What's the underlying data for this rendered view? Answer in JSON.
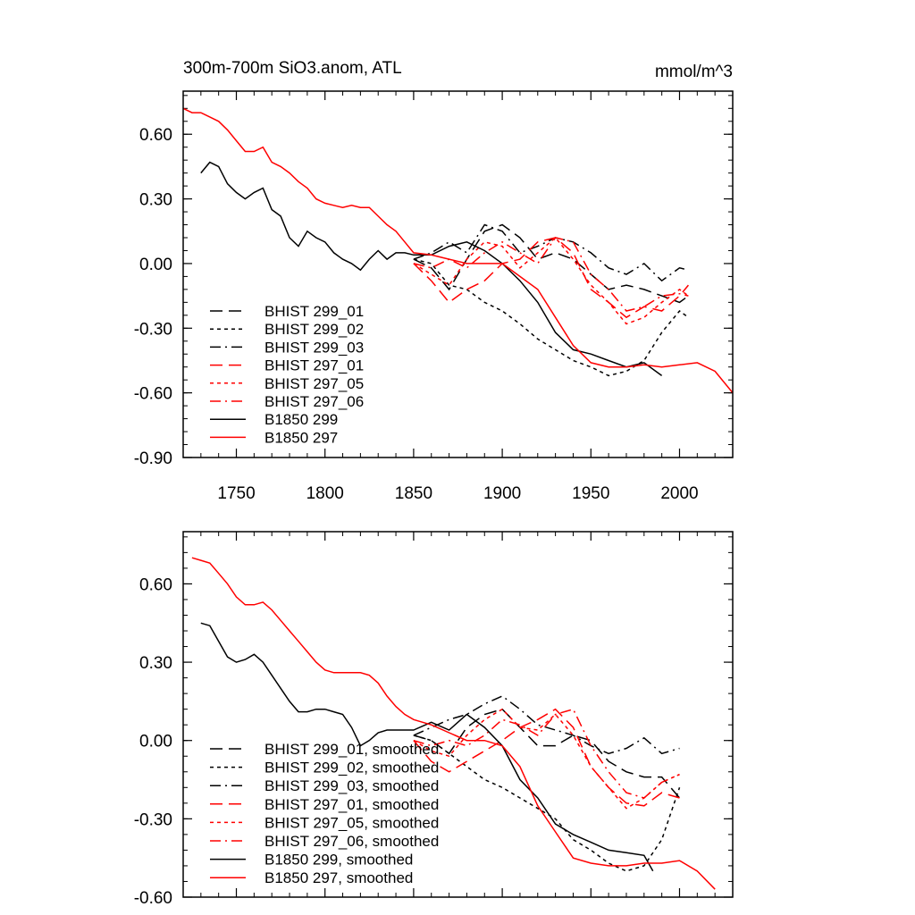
{
  "chart_data": [
    {
      "type": "line",
      "title": "300m-700m SiO3.anom, ATL",
      "units": "mmol/m^3",
      "xlim": [
        1720,
        2030
      ],
      "ylim": [
        -0.9,
        0.8
      ],
      "xticks": [
        1750,
        1800,
        1850,
        1900,
        1950,
        2000
      ],
      "xtick_labels": [
        "1750",
        "1800",
        "1850",
        "1900",
        "1950",
        "2000"
      ],
      "yticks": [
        0.6,
        0.3,
        0.0,
        -0.3,
        -0.6,
        -0.9
      ],
      "ytick_labels": [
        "0.60",
        "0.30",
        "0.00",
        "-0.30",
        "-0.60",
        "-0.90"
      ],
      "legend_position": "bottom-left",
      "series": [
        {
          "name": "BHIST 299_01",
          "color": "#000000",
          "dash": "long",
          "x": [
            1850,
            1860,
            1870,
            1880,
            1890,
            1900,
            1910,
            1920,
            1930,
            1940,
            1950,
            1960,
            1970,
            1980,
            1990,
            2000,
            2005
          ],
          "y": [
            0.02,
            -0.02,
            -0.12,
            0.02,
            0.15,
            0.18,
            0.12,
            0.02,
            0.05,
            0.02,
            -0.05,
            -0.12,
            -0.1,
            -0.12,
            -0.15,
            -0.18,
            -0.15
          ]
        },
        {
          "name": "BHIST 299_02",
          "color": "#000000",
          "dash": "short",
          "x": [
            1850,
            1860,
            1870,
            1880,
            1890,
            1900,
            1910,
            1920,
            1930,
            1940,
            1950,
            1960,
            1970,
            1980,
            1990,
            2000,
            2005
          ],
          "y": [
            0.02,
            0.0,
            -0.1,
            -0.12,
            -0.18,
            -0.22,
            -0.28,
            -0.35,
            -0.4,
            -0.45,
            -0.48,
            -0.52,
            -0.5,
            -0.45,
            -0.32,
            -0.22,
            -0.25
          ]
        },
        {
          "name": "BHIST 299_03",
          "color": "#000000",
          "dash": "dashdot",
          "x": [
            1850,
            1860,
            1870,
            1880,
            1890,
            1900,
            1910,
            1920,
            1930,
            1940,
            1950,
            1960,
            1970,
            1980,
            1990,
            2000,
            2005
          ],
          "y": [
            0.02,
            0.05,
            0.1,
            0.05,
            0.18,
            0.15,
            0.05,
            0.08,
            0.12,
            0.1,
            0.05,
            -0.02,
            -0.05,
            0.0,
            -0.08,
            -0.02,
            -0.03
          ]
        },
        {
          "name": "BHIST 297_01",
          "color": "#ff0000",
          "dash": "long",
          "x": [
            1850,
            1860,
            1870,
            1880,
            1890,
            1900,
            1910,
            1920,
            1930,
            1940,
            1950,
            1960,
            1970,
            1980,
            1990,
            2000,
            2005
          ],
          "y": [
            0.0,
            -0.08,
            -0.18,
            -0.12,
            -0.08,
            0.0,
            0.02,
            0.1,
            0.12,
            0.05,
            -0.12,
            -0.18,
            -0.25,
            -0.2,
            -0.22,
            -0.15,
            -0.1
          ]
        },
        {
          "name": "BHIST 297_05",
          "color": "#ff0000",
          "dash": "short",
          "x": [
            1850,
            1860,
            1870,
            1880,
            1890,
            1900,
            1910,
            1920,
            1930,
            1940,
            1950,
            1960,
            1970,
            1980,
            1990,
            2000,
            2005
          ],
          "y": [
            0.0,
            -0.05,
            -0.1,
            0.02,
            0.1,
            0.08,
            -0.02,
            0.05,
            0.12,
            0.02,
            -0.1,
            -0.18,
            -0.28,
            -0.25,
            -0.18,
            -0.12,
            -0.15
          ]
        },
        {
          "name": "BHIST 297_06",
          "color": "#ff0000",
          "dash": "dashdot",
          "x": [
            1850,
            1860,
            1870,
            1880,
            1890,
            1900,
            1910,
            1920,
            1930,
            1940,
            1950,
            1960,
            1970,
            1980,
            1990,
            2000,
            2005
          ],
          "y": [
            0.0,
            -0.02,
            0.02,
            -0.02,
            0.05,
            0.1,
            0.05,
            0.0,
            0.12,
            0.1,
            -0.05,
            -0.12,
            -0.22,
            -0.2,
            -0.15,
            -0.14,
            -0.15
          ]
        },
        {
          "name": "B1850 299",
          "color": "#000000",
          "dash": "solid",
          "x": [
            1730,
            1735,
            1740,
            1745,
            1750,
            1755,
            1760,
            1765,
            1770,
            1775,
            1780,
            1785,
            1790,
            1795,
            1800,
            1805,
            1810,
            1815,
            1820,
            1825,
            1830,
            1835,
            1840,
            1845,
            1850,
            1860,
            1870,
            1880,
            1890,
            1900,
            1910,
            1920,
            1930,
            1940,
            1950,
            1960,
            1970,
            1980,
            1990
          ],
          "y": [
            0.42,
            0.47,
            0.45,
            0.37,
            0.33,
            0.3,
            0.33,
            0.35,
            0.25,
            0.22,
            0.12,
            0.08,
            0.15,
            0.12,
            0.1,
            0.05,
            0.02,
            0.0,
            -0.03,
            0.02,
            0.06,
            0.02,
            0.05,
            0.05,
            0.04,
            0.04,
            0.08,
            0.1,
            0.06,
            0.0,
            -0.08,
            -0.18,
            -0.32,
            -0.4,
            -0.42,
            -0.45,
            -0.48,
            -0.46,
            -0.52
          ]
        },
        {
          "name": "B1850 297",
          "color": "#ff0000",
          "dash": "solid",
          "x": [
            1720,
            1725,
            1730,
            1735,
            1740,
            1745,
            1750,
            1755,
            1760,
            1765,
            1770,
            1775,
            1780,
            1785,
            1790,
            1795,
            1800,
            1805,
            1810,
            1815,
            1820,
            1825,
            1830,
            1835,
            1840,
            1845,
            1850,
            1860,
            1870,
            1880,
            1890,
            1900,
            1910,
            1920,
            1930,
            1940,
            1950,
            1960,
            1970,
            1980,
            1990,
            2000,
            2010,
            2020,
            2030
          ],
          "y": [
            0.72,
            0.7,
            0.7,
            0.68,
            0.66,
            0.62,
            0.57,
            0.52,
            0.52,
            0.54,
            0.47,
            0.45,
            0.42,
            0.38,
            0.35,
            0.3,
            0.28,
            0.27,
            0.26,
            0.27,
            0.26,
            0.26,
            0.22,
            0.18,
            0.15,
            0.1,
            0.05,
            0.04,
            0.02,
            0.0,
            0.0,
            0.0,
            -0.06,
            -0.12,
            -0.25,
            -0.38,
            -0.46,
            -0.48,
            -0.48,
            -0.47,
            -0.48,
            -0.47,
            -0.46,
            -0.5,
            -0.6
          ]
        }
      ]
    },
    {
      "type": "line",
      "title": "",
      "xlim": [
        1720,
        2030
      ],
      "ylim": [
        -0.6,
        0.8
      ],
      "xticks": [
        1750,
        1800,
        1850,
        1900,
        1950,
        2000
      ],
      "yticks": [
        0.6,
        0.3,
        0.0,
        -0.3,
        -0.6
      ],
      "ytick_labels": [
        "0.60",
        "0.30",
        "0.00",
        "-0.30",
        "-0.60"
      ],
      "legend_position": "bottom-left",
      "series": [
        {
          "name": "BHIST 299_01, smoothed",
          "color": "#000000",
          "dash": "long",
          "x": [
            1850,
            1860,
            1870,
            1880,
            1890,
            1900,
            1910,
            1920,
            1930,
            1940,
            1950,
            1960,
            1970,
            1980,
            1990,
            2000
          ],
          "y": [
            0.02,
            0.0,
            -0.05,
            0.05,
            0.1,
            0.12,
            0.05,
            -0.02,
            -0.02,
            0.02,
            0.0,
            -0.08,
            -0.12,
            -0.14,
            -0.14,
            -0.22
          ]
        },
        {
          "name": "BHIST 299_02, smoothed",
          "color": "#000000",
          "dash": "short",
          "x": [
            1850,
            1860,
            1870,
            1880,
            1890,
            1900,
            1910,
            1920,
            1930,
            1940,
            1950,
            1960,
            1970,
            1980,
            1990,
            2000
          ],
          "y": [
            0.02,
            0.0,
            -0.05,
            -0.1,
            -0.15,
            -0.18,
            -0.22,
            -0.26,
            -0.3,
            -0.38,
            -0.42,
            -0.47,
            -0.5,
            -0.48,
            -0.38,
            -0.18
          ]
        },
        {
          "name": "BHIST 299_03, smoothed",
          "color": "#000000",
          "dash": "dashdot",
          "x": [
            1850,
            1860,
            1870,
            1880,
            1890,
            1900,
            1910,
            1920,
            1930,
            1940,
            1950,
            1960,
            1970,
            1980,
            1990,
            2000
          ],
          "y": [
            0.02,
            0.05,
            0.08,
            0.1,
            0.14,
            0.17,
            0.12,
            0.06,
            0.04,
            0.02,
            -0.02,
            -0.05,
            -0.03,
            0.01,
            -0.05,
            -0.03
          ]
        },
        {
          "name": "BHIST 297_01, smoothed",
          "color": "#ff0000",
          "dash": "long",
          "x": [
            1850,
            1860,
            1870,
            1880,
            1890,
            1900,
            1910,
            1920,
            1930,
            1940,
            1950,
            1960,
            1970,
            1980,
            1990,
            2000
          ],
          "y": [
            0.0,
            -0.08,
            -0.12,
            -0.08,
            -0.04,
            0.0,
            0.05,
            0.08,
            0.12,
            0.05,
            -0.1,
            -0.18,
            -0.24,
            -0.25,
            -0.2,
            -0.22
          ]
        },
        {
          "name": "BHIST 297_05, smoothed",
          "color": "#ff0000",
          "dash": "short",
          "x": [
            1850,
            1860,
            1870,
            1880,
            1890,
            1900,
            1910,
            1920,
            1930,
            1940,
            1950,
            1960,
            1970,
            1980,
            1990,
            2000
          ],
          "y": [
            0.0,
            -0.04,
            -0.06,
            0.02,
            0.08,
            0.12,
            0.05,
            0.04,
            0.1,
            0.02,
            -0.1,
            -0.18,
            -0.26,
            -0.22,
            -0.16,
            -0.13
          ]
        },
        {
          "name": "BHIST 297_06, smoothed",
          "color": "#ff0000",
          "dash": "dashdot",
          "x": [
            1850,
            1860,
            1870,
            1880,
            1890,
            1900,
            1910,
            1920,
            1930,
            1940,
            1950,
            1960,
            1970,
            1980,
            1990,
            2000
          ],
          "y": [
            0.0,
            -0.02,
            0.0,
            -0.02,
            0.02,
            0.08,
            0.06,
            0.02,
            0.1,
            0.12,
            -0.02,
            -0.12,
            -0.2,
            -0.22,
            -0.16,
            -0.13
          ]
        },
        {
          "name": "B1850 299, smoothed",
          "color": "#000000",
          "dash": "solid",
          "x": [
            1730,
            1735,
            1740,
            1745,
            1750,
            1755,
            1760,
            1765,
            1770,
            1775,
            1780,
            1785,
            1790,
            1795,
            1800,
            1805,
            1810,
            1815,
            1820,
            1825,
            1830,
            1835,
            1840,
            1845,
            1850,
            1860,
            1870,
            1880,
            1890,
            1900,
            1910,
            1920,
            1930,
            1940,
            1950,
            1960,
            1970,
            1980,
            1985
          ],
          "y": [
            0.45,
            0.44,
            0.38,
            0.32,
            0.3,
            0.31,
            0.33,
            0.3,
            0.25,
            0.2,
            0.15,
            0.11,
            0.11,
            0.12,
            0.12,
            0.11,
            0.1,
            0.05,
            -0.02,
            0.0,
            0.03,
            0.04,
            0.04,
            0.04,
            0.04,
            0.07,
            0.04,
            0.1,
            0.05,
            -0.02,
            -0.15,
            -0.22,
            -0.32,
            -0.36,
            -0.39,
            -0.42,
            -0.43,
            -0.44,
            -0.5
          ]
        },
        {
          "name": "B1850 297, smoothed",
          "color": "#ff0000",
          "dash": "solid",
          "x": [
            1725,
            1730,
            1735,
            1740,
            1745,
            1750,
            1755,
            1760,
            1765,
            1770,
            1775,
            1780,
            1785,
            1790,
            1795,
            1800,
            1805,
            1810,
            1815,
            1820,
            1825,
            1830,
            1835,
            1840,
            1845,
            1850,
            1860,
            1870,
            1880,
            1890,
            1900,
            1910,
            1920,
            1930,
            1940,
            1950,
            1960,
            1970,
            1980,
            1990,
            2000,
            2010,
            2020
          ],
          "y": [
            0.7,
            0.69,
            0.68,
            0.64,
            0.6,
            0.55,
            0.52,
            0.52,
            0.53,
            0.5,
            0.46,
            0.42,
            0.38,
            0.34,
            0.3,
            0.27,
            0.26,
            0.26,
            0.26,
            0.26,
            0.25,
            0.22,
            0.17,
            0.13,
            0.1,
            0.08,
            0.06,
            0.03,
            0.0,
            0.0,
            -0.02,
            -0.1,
            -0.25,
            -0.35,
            -0.45,
            -0.47,
            -0.48,
            -0.48,
            -0.47,
            -0.47,
            -0.46,
            -0.5,
            -0.57
          ]
        }
      ]
    }
  ]
}
